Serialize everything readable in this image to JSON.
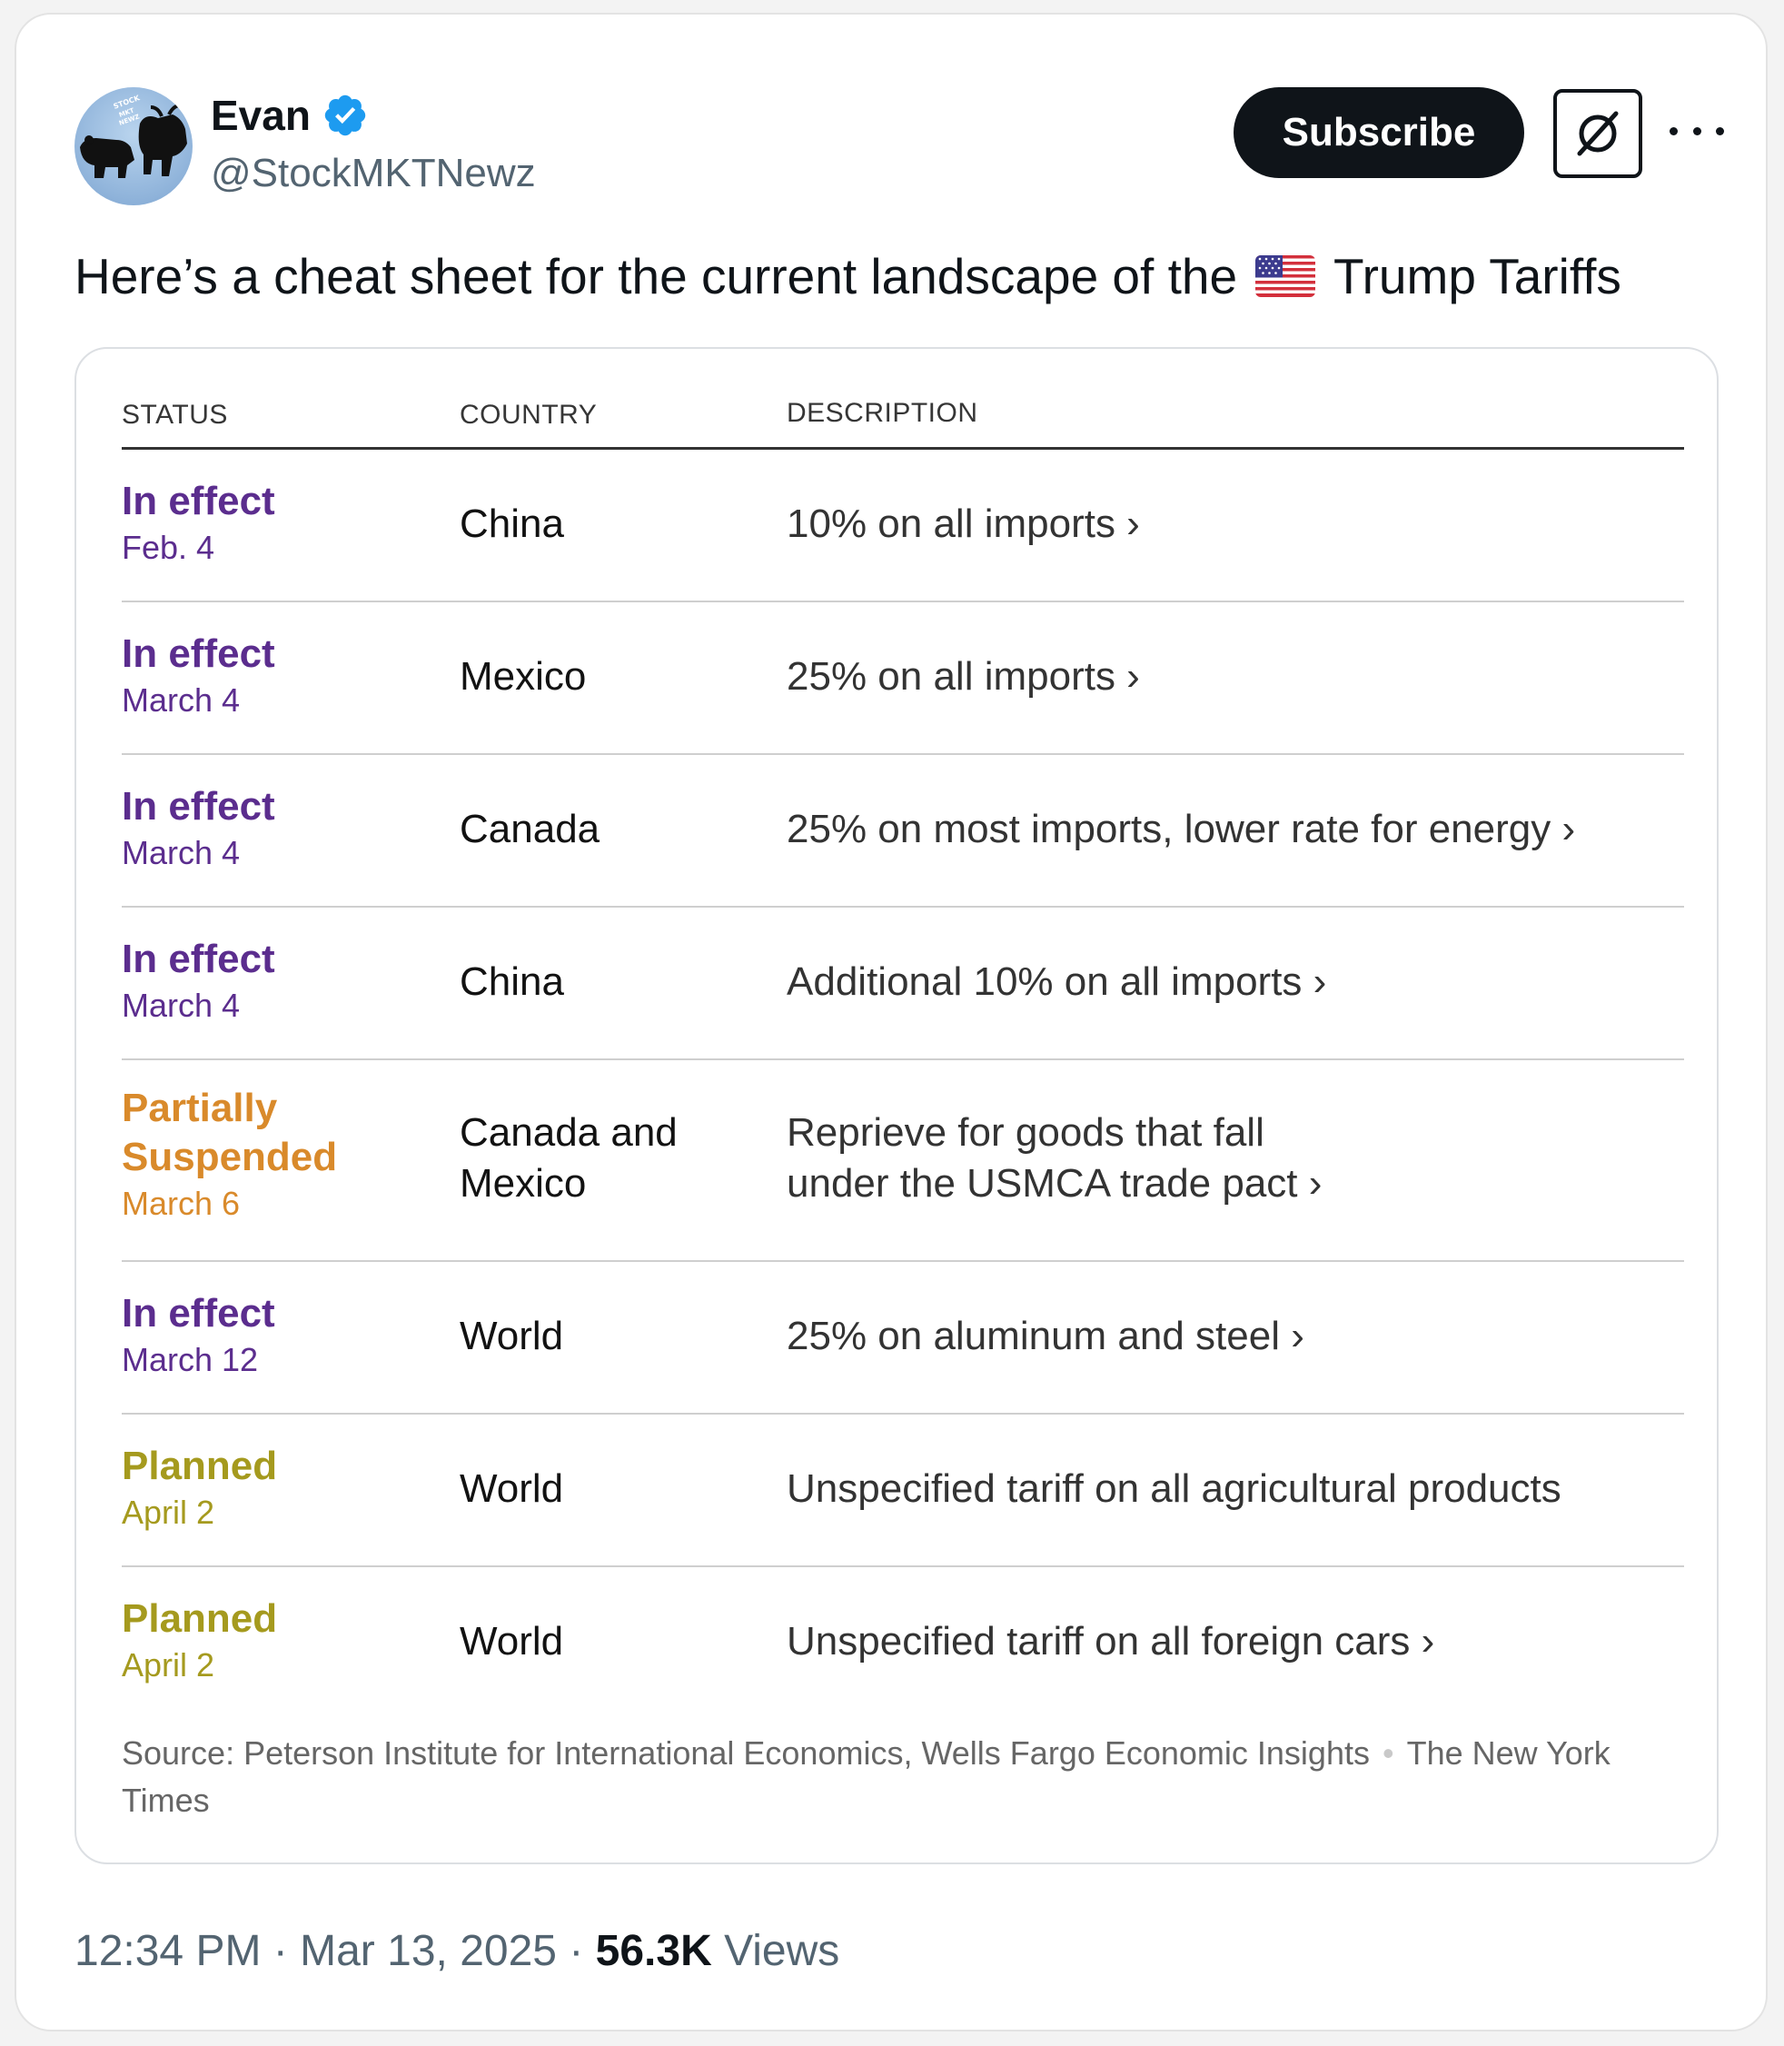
{
  "author": {
    "name": "Evan",
    "handle": "@StockMKTNewz",
    "avatar_text": "STOCK MKT NEWZ"
  },
  "actions": {
    "subscribe_label": "Subscribe",
    "grok_icon": "grok-icon",
    "more_icon": "more-icon"
  },
  "tweet": {
    "text_before": "Here’s a cheat sheet for the current landscape of the",
    "emoji": "us-flag-icon",
    "text_after": "Trump Tariffs"
  },
  "table": {
    "headers": [
      "STATUS",
      "COUNTRY",
      "DESCRIPTION"
    ],
    "rows": [
      {
        "status": "In effect",
        "date": "Feb. 4",
        "country": "China",
        "description": "10% on all imports ›",
        "kind": "effect"
      },
      {
        "status": "In effect",
        "date": "March 4",
        "country": "Mexico",
        "description": "25% on all imports ›",
        "kind": "effect"
      },
      {
        "status": "In effect",
        "date": "March 4",
        "country": "Canada",
        "description": "25% on most imports, lower rate for energy ›",
        "kind": "effect"
      },
      {
        "status": "In effect",
        "date": "March 4",
        "country": "China",
        "description": "Additional 10% on all imports ›",
        "kind": "effect"
      },
      {
        "status": "Partially Suspended",
        "date": "March 6",
        "country": "Canada and Mexico",
        "description": "Reprieve for goods that fall under the USMCA trade pact ›",
        "kind": "suspended"
      },
      {
        "status": "In effect",
        "date": "March 12",
        "country": "World",
        "description": "25% on aluminum and steel ›",
        "kind": "effect"
      },
      {
        "status": "Planned",
        "date": "April 2",
        "country": "World",
        "description": "Unspecified tariff on all agricultural products",
        "kind": "planned"
      },
      {
        "status": "Planned",
        "date": "April 2",
        "country": "World",
        "description": "Unspecified tariff on all foreign cars ›",
        "kind": "planned"
      }
    ],
    "source_text": "Source: Peterson Institute for International Economics, Wells Fargo Economic Insights",
    "source_publisher": "The New York Times"
  },
  "meta": {
    "time": "12:34 PM",
    "date": "Mar 13, 2025",
    "views_count": "56.3K",
    "views_label": "Views",
    "separator": "·"
  },
  "colors": {
    "effect": "#5b2d8e",
    "suspended": "#d98a2b",
    "planned": "#a59a1e",
    "verified": "#1d9bf0"
  }
}
